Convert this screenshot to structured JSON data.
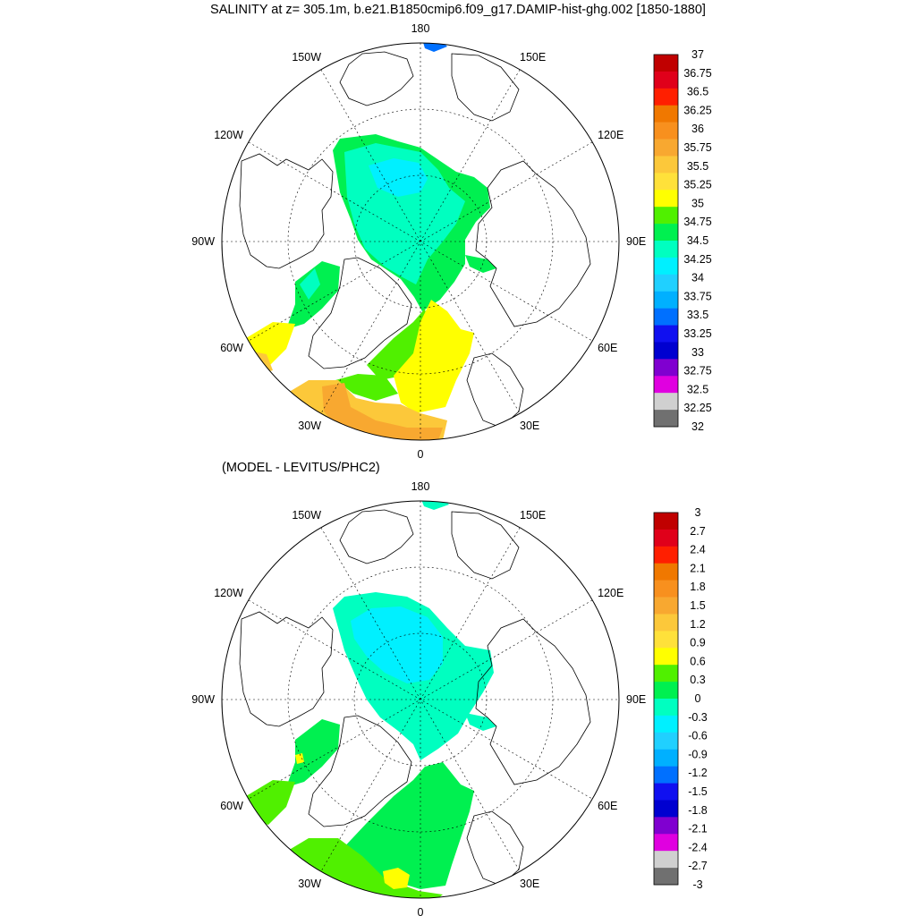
{
  "header": {
    "title": "SALINITY at z= 305.1m, b.e21.B1850cmip6.f09_g17.DAMIP-hist-ghg.002 [1850-1880]"
  },
  "panels": [
    {
      "id": "salinity",
      "subtitle": "",
      "longitude_labels": [
        {
          "lon": 180,
          "text": "180"
        },
        {
          "lon": 150,
          "text": "150E"
        },
        {
          "lon": 120,
          "text": "120E"
        },
        {
          "lon": 90,
          "text": "90E"
        },
        {
          "lon": 60,
          "text": "60E"
        },
        {
          "lon": 30,
          "text": "30E"
        },
        {
          "lon": 0,
          "text": "0"
        },
        {
          "lon": -30,
          "text": "30W"
        },
        {
          "lon": -60,
          "text": "60W"
        },
        {
          "lon": -90,
          "text": "90W"
        },
        {
          "lon": -120,
          "text": "120W"
        },
        {
          "lon": -150,
          "text": "150W"
        }
      ],
      "colorbar": {
        "labels": [
          "37",
          "36.75",
          "36.5",
          "36.25",
          "36",
          "35.75",
          "35.5",
          "35.25",
          "35",
          "34.75",
          "34.5",
          "34.25",
          "34",
          "33.75",
          "33.5",
          "33.25",
          "33",
          "32.75",
          "32.5",
          "32.25",
          "32"
        ],
        "colors": [
          "#c00000",
          "#e0001a",
          "#ff1f00",
          "#f07800",
          "#f8901e",
          "#f8a830",
          "#fcc83a",
          "#ffe13a",
          "#ffff00",
          "#50f000",
          "#00f050",
          "#00ffc0",
          "#00f0ff",
          "#20d0ff",
          "#00b0ff",
          "#0070ff",
          "#1010f0",
          "#0000d0",
          "#8000d0",
          "#e000e0",
          "#d0d0d0",
          "#707070"
        ]
      }
    },
    {
      "id": "difference",
      "subtitle": "(MODEL - LEVITUS/PHC2)",
      "longitude_labels": [
        {
          "lon": 180,
          "text": "180"
        },
        {
          "lon": 150,
          "text": "150E"
        },
        {
          "lon": 120,
          "text": "120E"
        },
        {
          "lon": 90,
          "text": "90E"
        },
        {
          "lon": 60,
          "text": "60E"
        },
        {
          "lon": 30,
          "text": "30E"
        },
        {
          "lon": 0,
          "text": "0"
        },
        {
          "lon": -30,
          "text": "30W"
        },
        {
          "lon": -60,
          "text": "60W"
        },
        {
          "lon": -90,
          "text": "90W"
        },
        {
          "lon": -120,
          "text": "120W"
        },
        {
          "lon": -150,
          "text": "150W"
        }
      ],
      "colorbar": {
        "labels": [
          "3",
          "2.7",
          "2.4",
          "2.1",
          "1.8",
          "1.5",
          "1.2",
          "0.9",
          "0.6",
          "0.3",
          "0",
          "-0.3",
          "-0.6",
          "-0.9",
          "-1.2",
          "-1.5",
          "-1.8",
          "-2.1",
          "-2.4",
          "-2.7",
          "-3"
        ],
        "colors": [
          "#c00000",
          "#e0001a",
          "#ff1f00",
          "#f07800",
          "#f8901e",
          "#f8a830",
          "#fcc83a",
          "#ffe13a",
          "#ffff00",
          "#50f000",
          "#00f050",
          "#00ffc0",
          "#00f0ff",
          "#20d0ff",
          "#00b0ff",
          "#0070ff",
          "#1010f0",
          "#0000d0",
          "#8000d0",
          "#e000e0",
          "#d0d0d0",
          "#707070"
        ]
      }
    }
  ]
}
